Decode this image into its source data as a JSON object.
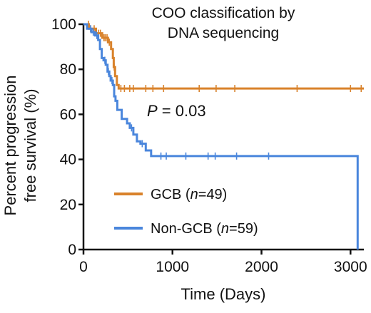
{
  "chart_data": {
    "type": "line",
    "subtype": "kaplan-meier survival curve",
    "title_lines": [
      "COO classification by",
      "DNA sequencing"
    ],
    "xlabel": "Time (Days)",
    "ylabel_lines": [
      "Percent progression",
      "free survival (%)"
    ],
    "xlim": [
      0,
      3150
    ],
    "ylim": [
      0,
      100
    ],
    "x_ticks": [
      0,
      1000,
      2000,
      3000
    ],
    "y_ticks": [
      0,
      20,
      40,
      60,
      80,
      100
    ],
    "grid": false,
    "legend_position": "bottom-left",
    "annotation": {
      "label": "P",
      "text": " = 0.03"
    },
    "series": [
      {
        "name": "GCB",
        "n_text": "n",
        "legend_suffix": "=49)",
        "color": "#D9822B",
        "steps": [
          [
            0,
            100
          ],
          [
            60,
            98
          ],
          [
            140,
            96
          ],
          [
            210,
            94
          ],
          [
            275,
            92
          ],
          [
            310,
            89
          ],
          [
            330,
            85
          ],
          [
            340,
            81
          ],
          [
            355,
            77
          ],
          [
            375,
            73
          ],
          [
            395,
            71.5
          ],
          [
            3150,
            71.5
          ]
        ],
        "censored": [
          [
            55,
            100
          ],
          [
            80,
            98
          ],
          [
            120,
            98
          ],
          [
            170,
            96
          ],
          [
            190,
            96
          ],
          [
            230,
            94
          ],
          [
            245,
            94
          ],
          [
            265,
            94
          ],
          [
            290,
            92
          ],
          [
            345,
            81
          ],
          [
            420,
            71.5
          ],
          [
            460,
            71.5
          ],
          [
            520,
            71.5
          ],
          [
            560,
            71.5
          ],
          [
            700,
            71.5
          ],
          [
            780,
            71.5
          ],
          [
            900,
            71.5
          ],
          [
            1300,
            71.5
          ],
          [
            1490,
            71.5
          ],
          [
            1700,
            71.5
          ],
          [
            2400,
            71.5
          ],
          [
            3000,
            71.5
          ],
          [
            3120,
            71.5
          ]
        ]
      },
      {
        "name": "Non-GCB",
        "n_text": "n",
        "legend_suffix": "=59)",
        "color": "#4A86DC",
        "steps": [
          [
            0,
            100
          ],
          [
            40,
            98
          ],
          [
            90,
            96.5
          ],
          [
            130,
            95
          ],
          [
            165,
            93
          ],
          [
            185,
            89
          ],
          [
            205,
            85
          ],
          [
            225,
            84
          ],
          [
            250,
            82
          ],
          [
            270,
            79
          ],
          [
            290,
            77
          ],
          [
            305,
            75
          ],
          [
            330,
            73
          ],
          [
            345,
            68
          ],
          [
            360,
            66
          ],
          [
            380,
            62
          ],
          [
            430,
            58
          ],
          [
            490,
            56
          ],
          [
            520,
            54
          ],
          [
            560,
            51
          ],
          [
            600,
            48
          ],
          [
            640,
            47
          ],
          [
            700,
            44
          ],
          [
            760,
            41.5
          ],
          [
            3080,
            41.5
          ],
          [
            3080,
            0
          ]
        ],
        "censored": [
          [
            80,
            98
          ],
          [
            110,
            96.5
          ],
          [
            150,
            95
          ],
          [
            240,
            84
          ],
          [
            280,
            79
          ],
          [
            320,
            75
          ],
          [
            540,
            54
          ],
          [
            660,
            47
          ],
          [
            870,
            41.5
          ],
          [
            930,
            41.5
          ],
          [
            1150,
            41.5
          ],
          [
            1400,
            41.5
          ],
          [
            1480,
            41.5
          ],
          [
            1720,
            41.5
          ],
          [
            2080,
            41.5
          ]
        ]
      }
    ]
  }
}
